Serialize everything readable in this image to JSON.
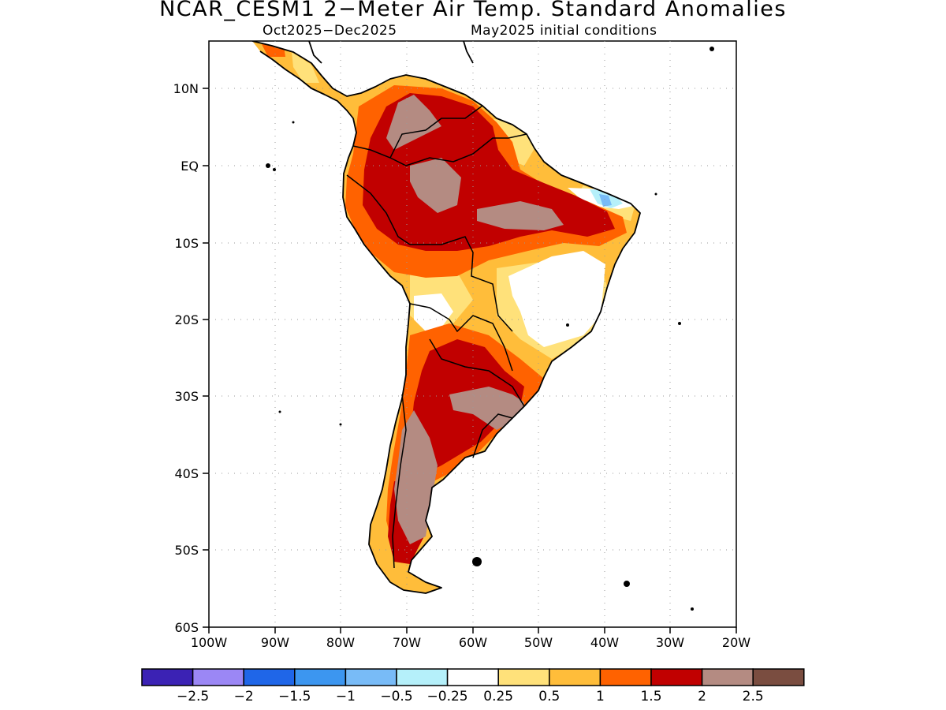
{
  "header": {
    "title": "NCAR_CESM1 2−Meter Air Temp. Standard Anomalies",
    "period": "Oct2025−Dec2025",
    "init": "May2025 initial conditions"
  },
  "axes": {
    "lat_labels": [
      "10N",
      "EQ",
      "10S",
      "20S",
      "30S",
      "40S",
      "50S",
      "60S"
    ],
    "lon_labels": [
      "100W",
      "90W",
      "80W",
      "70W",
      "60W",
      "50W",
      "40W",
      "30W",
      "20W"
    ]
  },
  "colorbar": {
    "colors": [
      "#3b22b4",
      "#9b87f5",
      "#1f66e8",
      "#3c96f0",
      "#78bbf7",
      "#b5f0fa",
      "#ffffff",
      "#ffe17a",
      "#ffbd3a",
      "#ff6200",
      "#c10000",
      "#b48b82",
      "#7a4d40"
    ],
    "labels": [
      "−2.5",
      "−2",
      "−1.5",
      "−1",
      "−0.5",
      "−0.25",
      "0.25",
      "0.5",
      "1",
      "1.5",
      "2",
      "2.5"
    ]
  }
}
